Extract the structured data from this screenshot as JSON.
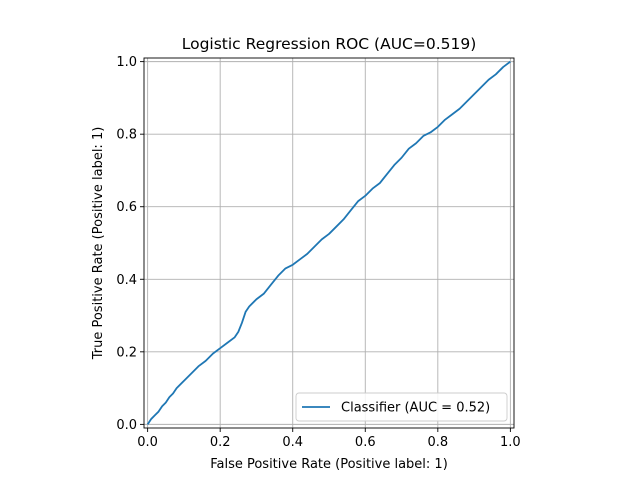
{
  "chart_data": {
    "type": "line",
    "title": "Logistic Regression ROC (AUC=0.519)",
    "xlabel": "False Positive Rate (Positive label: 1)",
    "ylabel": "True Positive Rate (Positive label: 1)",
    "xlim": [
      -0.01,
      1.01
    ],
    "ylim": [
      -0.01,
      1.01
    ],
    "x_ticks": [
      "0.0",
      "0.2",
      "0.4",
      "0.6",
      "0.8",
      "1.0"
    ],
    "y_ticks": [
      "0.0",
      "0.2",
      "0.4",
      "0.6",
      "0.8",
      "1.0"
    ],
    "grid": true,
    "legend_position": "lower-right",
    "colors": {
      "series": "#1f77b4"
    },
    "series": [
      {
        "name": "Classifier (AUC = 0.52)",
        "x": [
          0.0,
          0.01,
          0.02,
          0.03,
          0.04,
          0.05,
          0.06,
          0.07,
          0.08,
          0.1,
          0.12,
          0.14,
          0.16,
          0.18,
          0.2,
          0.22,
          0.24,
          0.25,
          0.26,
          0.27,
          0.28,
          0.3,
          0.32,
          0.34,
          0.36,
          0.38,
          0.4,
          0.42,
          0.44,
          0.46,
          0.48,
          0.5,
          0.52,
          0.54,
          0.56,
          0.58,
          0.6,
          0.62,
          0.64,
          0.66,
          0.68,
          0.7,
          0.72,
          0.74,
          0.76,
          0.78,
          0.8,
          0.82,
          0.84,
          0.86,
          0.88,
          0.9,
          0.92,
          0.94,
          0.96,
          0.98,
          1.0
        ],
        "y": [
          0.0,
          0.015,
          0.025,
          0.035,
          0.05,
          0.06,
          0.075,
          0.085,
          0.1,
          0.12,
          0.14,
          0.16,
          0.175,
          0.195,
          0.21,
          0.225,
          0.24,
          0.255,
          0.28,
          0.31,
          0.325,
          0.345,
          0.36,
          0.385,
          0.41,
          0.43,
          0.44,
          0.455,
          0.47,
          0.49,
          0.51,
          0.525,
          0.545,
          0.565,
          0.59,
          0.615,
          0.63,
          0.65,
          0.665,
          0.69,
          0.715,
          0.735,
          0.76,
          0.775,
          0.795,
          0.805,
          0.82,
          0.84,
          0.855,
          0.87,
          0.89,
          0.91,
          0.93,
          0.95,
          0.965,
          0.985,
          1.0
        ]
      }
    ]
  }
}
